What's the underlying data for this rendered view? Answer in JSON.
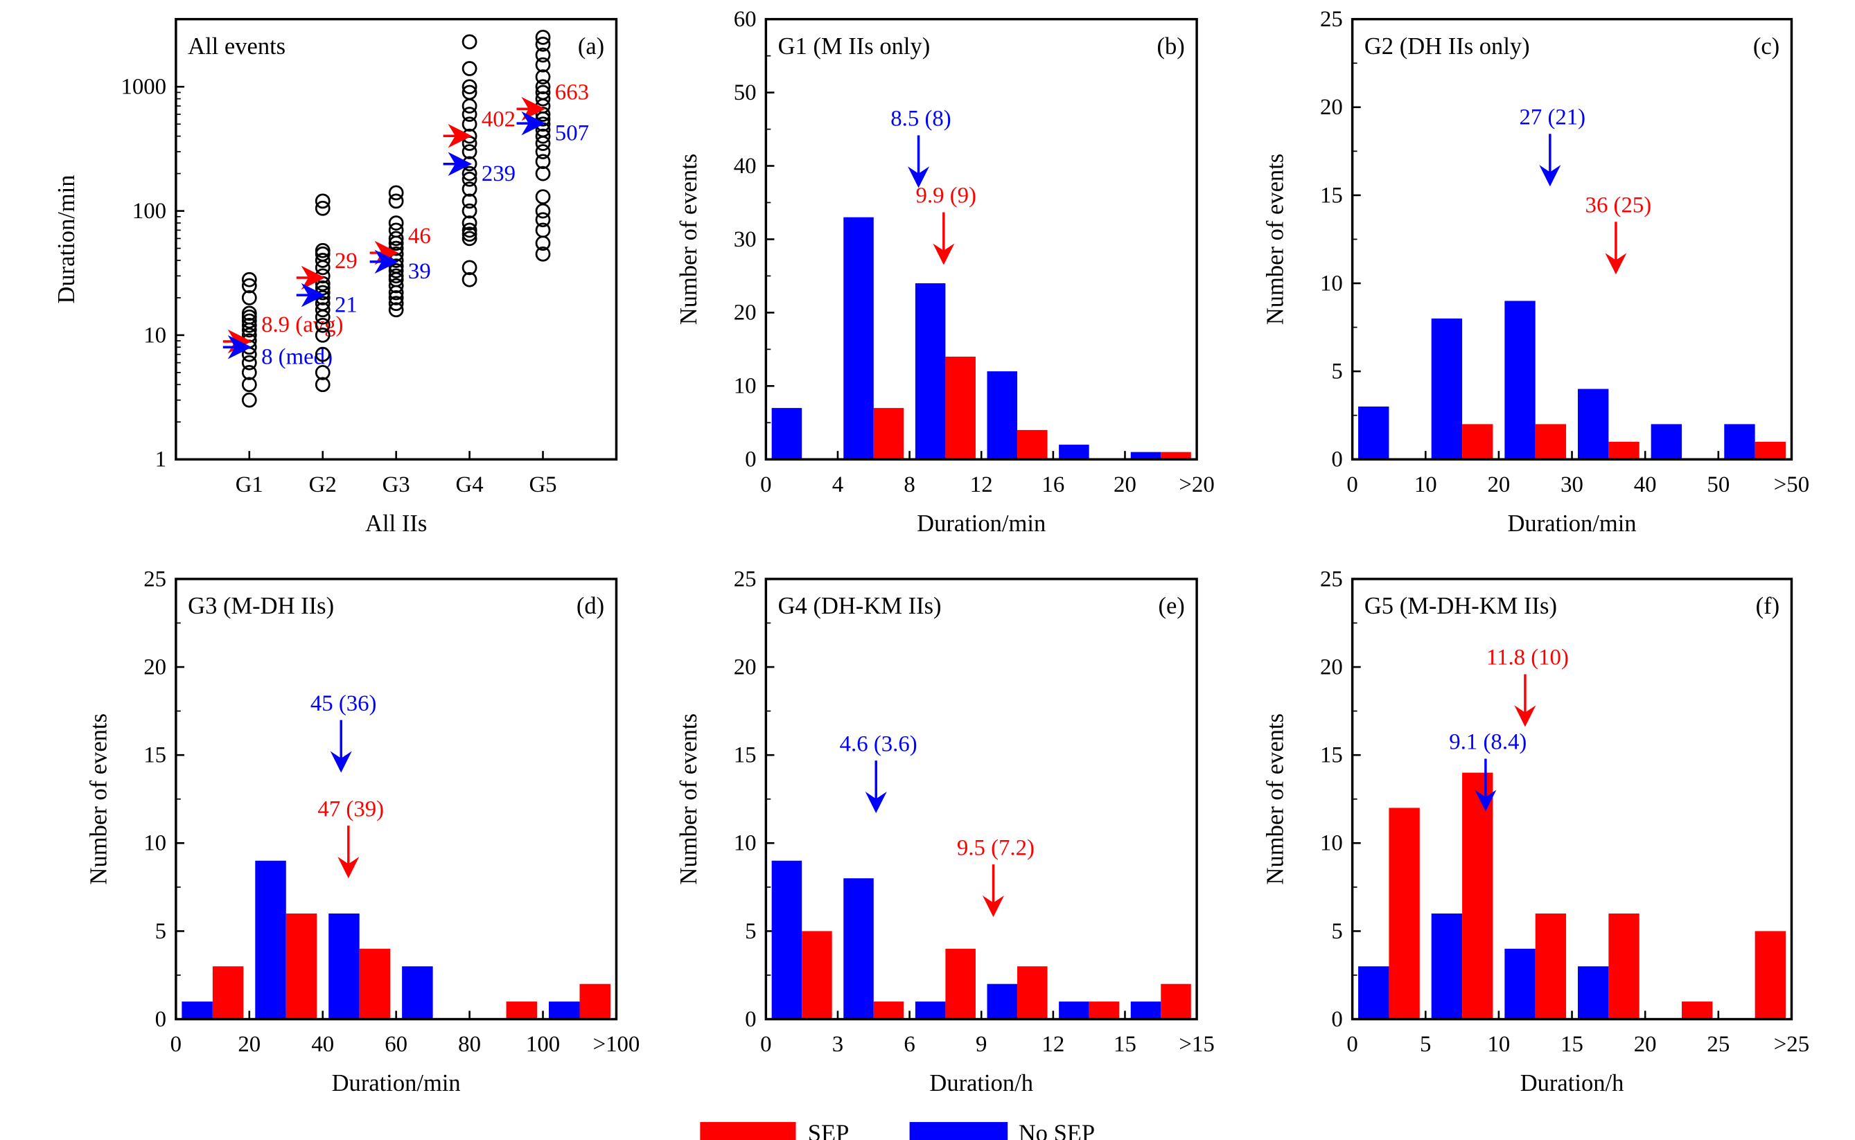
{
  "colors": {
    "sep": "#ff0000",
    "no_sep": "#0000ff",
    "axis": "#000000"
  },
  "legend": {
    "placement": "bottom-center",
    "items": [
      {
        "name": "SEP",
        "color": "#ff0000"
      },
      {
        "name": "No SEP",
        "color": "#0000ff"
      }
    ]
  },
  "chart_data": [
    {
      "id": "a",
      "type": "scatter",
      "title": "All events",
      "panel_label": "(a)",
      "xlabel": "All IIs",
      "ylabel": "Duration/min",
      "yscale": "log",
      "ylim": [
        1,
        3500
      ],
      "yticks": [
        1,
        10,
        100,
        1000
      ],
      "ytick_labels": [
        "1",
        "10",
        "100",
        "1000"
      ],
      "categories": [
        "G1",
        "G2",
        "G3",
        "G4",
        "G5"
      ],
      "points": [
        [
          3,
          4,
          5,
          6,
          7,
          8,
          9,
          10,
          11,
          12,
          13,
          14,
          15,
          20,
          25,
          28
        ],
        [
          4,
          5,
          7,
          10,
          12,
          14,
          16,
          18,
          20,
          22,
          24,
          26,
          30,
          35,
          40,
          45,
          48,
          105,
          120
        ],
        [
          16,
          18,
          20,
          22,
          25,
          28,
          30,
          33,
          36,
          40,
          45,
          50,
          55,
          60,
          70,
          80,
          120,
          140
        ],
        [
          28,
          35,
          60,
          65,
          70,
          80,
          100,
          120,
          150,
          180,
          200,
          240,
          300,
          350,
          400,
          500,
          600,
          700,
          900,
          1000,
          1400,
          2300
        ],
        [
          45,
          55,
          70,
          85,
          100,
          130,
          200,
          250,
          300,
          350,
          400,
          450,
          500,
          550,
          600,
          700,
          800,
          900,
          1000,
          1200,
          1500,
          1800,
          2200,
          2500
        ]
      ],
      "averages": [
        8.9,
        29,
        46,
        402,
        663
      ],
      "medians": [
        8,
        21,
        39,
        239,
        507
      ],
      "average_labels": [
        "8.9 (avg)",
        "29",
        "46",
        "402",
        "663"
      ],
      "median_labels": [
        "8 (med)",
        "21",
        "39",
        "239",
        "507"
      ]
    },
    {
      "id": "b",
      "type": "bar",
      "title": "G1 (M IIs only)",
      "panel_label": "(b)",
      "xlabel": "Duration/min",
      "ylabel": "Number of events",
      "ylim": [
        0,
        60
      ],
      "yticks": [
        0,
        10,
        20,
        30,
        40,
        50,
        60
      ],
      "xtick_labels": [
        "0",
        "4",
        "8",
        "12",
        "16",
        "20",
        ">20"
      ],
      "bin_width": 4,
      "series": [
        {
          "name": "No SEP",
          "values": [
            7,
            33,
            24,
            12,
            2,
            1
          ]
        },
        {
          "name": "SEP",
          "values": [
            0,
            7,
            14,
            4,
            0,
            1
          ]
        }
      ],
      "annotations": [
        {
          "series": "No SEP",
          "x": 8.5,
          "text": "8.5 (8)",
          "y": 37
        },
        {
          "series": "SEP",
          "x": 9.9,
          "text": "9.9 (9)",
          "y": 26.5
        }
      ]
    },
    {
      "id": "c",
      "type": "bar",
      "title": "G2 (DH IIs only)",
      "panel_label": "(c)",
      "xlabel": "Duration/min",
      "ylabel": "Number of events",
      "ylim": [
        0,
        25
      ],
      "yticks": [
        0,
        5,
        10,
        15,
        20,
        25
      ],
      "xtick_labels": [
        "0",
        "10",
        "20",
        "30",
        "40",
        "50",
        ">50"
      ],
      "bin_width": 10,
      "series": [
        {
          "name": "No SEP",
          "values": [
            3,
            8,
            9,
            4,
            2,
            2
          ]
        },
        {
          "name": "SEP",
          "values": [
            0,
            2,
            2,
            1,
            0,
            1
          ]
        }
      ],
      "annotations": [
        {
          "series": "No SEP",
          "x": 27,
          "text": "27 (21)",
          "y": 15.5
        },
        {
          "series": "SEP",
          "x": 36,
          "text": "36 (25)",
          "y": 10.5
        }
      ]
    },
    {
      "id": "d",
      "type": "bar",
      "title": "G3 (M-DH IIs)",
      "panel_label": "(d)",
      "xlabel": "Duration/min",
      "ylabel": "Number of events",
      "ylim": [
        0,
        25
      ],
      "yticks": [
        0,
        5,
        10,
        15,
        20,
        25
      ],
      "xtick_labels": [
        "0",
        "20",
        "40",
        "60",
        "80",
        "100",
        ">100"
      ],
      "bin_width": 20,
      "series": [
        {
          "name": "No SEP",
          "values": [
            1,
            9,
            6,
            3,
            0,
            1
          ]
        },
        {
          "name": "SEP",
          "values": [
            3,
            6,
            4,
            0,
            1,
            2
          ]
        }
      ],
      "annotations": [
        {
          "series": "No SEP",
          "x": 45,
          "text": "45 (36)",
          "y": 14
        },
        {
          "series": "SEP",
          "x": 47,
          "text": "47 (39)",
          "y": 8
        }
      ]
    },
    {
      "id": "e",
      "type": "bar",
      "title": "G4 (DH-KM IIs)",
      "panel_label": "(e)",
      "xlabel": "Duration/h",
      "ylabel": "Number of events",
      "ylim": [
        0,
        25
      ],
      "yticks": [
        0,
        5,
        10,
        15,
        20,
        25
      ],
      "xtick_labels": [
        "0",
        "3",
        "6",
        "9",
        "12",
        "15",
        ">15"
      ],
      "bin_width": 3,
      "series": [
        {
          "name": "No SEP",
          "values": [
            9,
            8,
            1,
            2,
            1,
            1
          ]
        },
        {
          "name": "SEP",
          "values": [
            5,
            1,
            4,
            3,
            1,
            2
          ]
        }
      ],
      "annotations": [
        {
          "series": "No SEP",
          "x": 4.6,
          "text": "4.6 (3.6)",
          "y": 11.7
        },
        {
          "series": "SEP",
          "x": 9.5,
          "text": "9.5 (7.2)",
          "y": 5.8
        }
      ]
    },
    {
      "id": "f",
      "type": "bar",
      "title": "G5 (M-DH-KM IIs)",
      "panel_label": "(f)",
      "xlabel": "Duration/h",
      "ylabel": "Number of events",
      "ylim": [
        0,
        25
      ],
      "yticks": [
        0,
        5,
        10,
        15,
        20,
        25
      ],
      "xtick_labels": [
        "0",
        "5",
        "10",
        "15",
        "20",
        "25",
        ">25"
      ],
      "bin_width": 5,
      "series": [
        {
          "name": "No SEP",
          "values": [
            3,
            6,
            4,
            3,
            0,
            0
          ]
        },
        {
          "name": "SEP",
          "values": [
            12,
            14,
            6,
            6,
            1,
            5
          ]
        }
      ],
      "annotations": [
        {
          "series": "SEP",
          "x": 11.8,
          "text": "11.8 (10)",
          "y": 16.6
        },
        {
          "series": "No SEP",
          "x": 9.1,
          "text": "9.1 (8.4)",
          "y": 11.8
        }
      ]
    }
  ]
}
